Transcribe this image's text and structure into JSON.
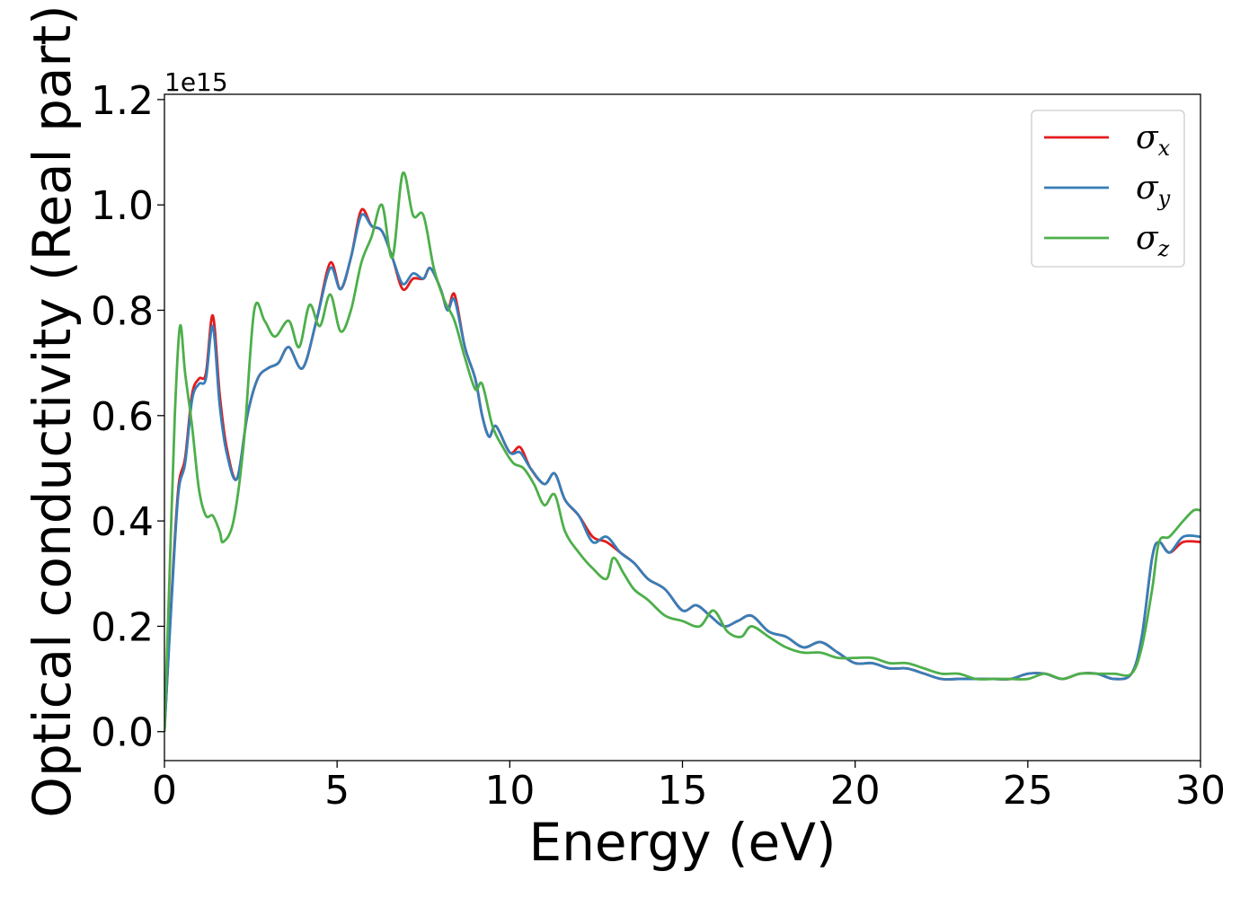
{
  "chart_data": {
    "type": "line",
    "title": "",
    "xlabel": "Energy (eV)",
    "ylabel": "Optical conductivity (Real part)",
    "y_offset_label": "1e15",
    "xlim": [
      0,
      30
    ],
    "ylim": [
      -0.055,
      1.21
    ],
    "grid": false,
    "legend_position": "top-right",
    "x_ticks": [
      0,
      5,
      10,
      15,
      20,
      25,
      30
    ],
    "x_tick_labels": [
      "0",
      "5",
      "10",
      "15",
      "20",
      "25",
      "30"
    ],
    "y_ticks": [
      0.0,
      0.2,
      0.4,
      0.6,
      0.8,
      1.0,
      1.2
    ],
    "y_tick_labels": [
      "0.0",
      "0.2",
      "0.4",
      "0.6",
      "0.8",
      "1.0",
      "1.2"
    ],
    "series": [
      {
        "name": "σ",
        "subscript": "x",
        "color": "#e41a1c",
        "points": [
          [
            0,
            0
          ],
          [
            0.2,
            0.25
          ],
          [
            0.4,
            0.46
          ],
          [
            0.6,
            0.52
          ],
          [
            0.8,
            0.64
          ],
          [
            1.0,
            0.67
          ],
          [
            1.2,
            0.68
          ],
          [
            1.4,
            0.79
          ],
          [
            1.6,
            0.64
          ],
          [
            1.8,
            0.54
          ],
          [
            2.1,
            0.48
          ],
          [
            2.4,
            0.6
          ],
          [
            2.7,
            0.67
          ],
          [
            3.0,
            0.69
          ],
          [
            3.3,
            0.7
          ],
          [
            3.6,
            0.73
          ],
          [
            4.0,
            0.69
          ],
          [
            4.4,
            0.78
          ],
          [
            4.8,
            0.89
          ],
          [
            5.1,
            0.84
          ],
          [
            5.4,
            0.9
          ],
          [
            5.7,
            0.99
          ],
          [
            6.0,
            0.96
          ],
          [
            6.3,
            0.95
          ],
          [
            6.6,
            0.9
          ],
          [
            6.9,
            0.84
          ],
          [
            7.2,
            0.86
          ],
          [
            7.5,
            0.86
          ],
          [
            7.7,
            0.88
          ],
          [
            8.0,
            0.84
          ],
          [
            8.2,
            0.8
          ],
          [
            8.4,
            0.83
          ],
          [
            8.7,
            0.73
          ],
          [
            9.0,
            0.67
          ],
          [
            9.2,
            0.6
          ],
          [
            9.4,
            0.56
          ],
          [
            9.6,
            0.58
          ],
          [
            10.0,
            0.53
          ],
          [
            10.3,
            0.54
          ],
          [
            10.6,
            0.5
          ],
          [
            11.0,
            0.47
          ],
          [
            11.3,
            0.49
          ],
          [
            11.6,
            0.44
          ],
          [
            12.0,
            0.41
          ],
          [
            12.4,
            0.37
          ],
          [
            12.8,
            0.36
          ],
          [
            13.2,
            0.34
          ],
          [
            13.6,
            0.32
          ],
          [
            14.0,
            0.29
          ],
          [
            14.5,
            0.27
          ],
          [
            15.0,
            0.23
          ],
          [
            15.4,
            0.24
          ],
          [
            15.8,
            0.22
          ],
          [
            16.2,
            0.2
          ],
          [
            16.6,
            0.21
          ],
          [
            17.0,
            0.22
          ],
          [
            17.5,
            0.19
          ],
          [
            18.0,
            0.18
          ],
          [
            18.5,
            0.16
          ],
          [
            19.0,
            0.17
          ],
          [
            19.5,
            0.15
          ],
          [
            20.0,
            0.13
          ],
          [
            20.5,
            0.13
          ],
          [
            21.0,
            0.12
          ],
          [
            21.5,
            0.12
          ],
          [
            22.0,
            0.11
          ],
          [
            22.5,
            0.1
          ],
          [
            23.0,
            0.1
          ],
          [
            23.5,
            0.1
          ],
          [
            24.0,
            0.1
          ],
          [
            24.5,
            0.1
          ],
          [
            25.0,
            0.11
          ],
          [
            25.5,
            0.11
          ],
          [
            26.0,
            0.1
          ],
          [
            26.5,
            0.11
          ],
          [
            27.0,
            0.11
          ],
          [
            27.5,
            0.1
          ],
          [
            28.0,
            0.11
          ],
          [
            28.3,
            0.18
          ],
          [
            28.6,
            0.33
          ],
          [
            28.8,
            0.36
          ],
          [
            29.1,
            0.34
          ],
          [
            29.5,
            0.36
          ],
          [
            30.0,
            0.36
          ]
        ]
      },
      {
        "name": "σ",
        "subscript": "y",
        "color": "#377eb8",
        "points": [
          [
            0,
            0
          ],
          [
            0.2,
            0.24
          ],
          [
            0.4,
            0.45
          ],
          [
            0.6,
            0.51
          ],
          [
            0.8,
            0.63
          ],
          [
            1.0,
            0.66
          ],
          [
            1.2,
            0.67
          ],
          [
            1.4,
            0.77
          ],
          [
            1.6,
            0.62
          ],
          [
            1.8,
            0.53
          ],
          [
            2.1,
            0.48
          ],
          [
            2.4,
            0.6
          ],
          [
            2.7,
            0.67
          ],
          [
            3.0,
            0.69
          ],
          [
            3.3,
            0.7
          ],
          [
            3.6,
            0.73
          ],
          [
            4.0,
            0.69
          ],
          [
            4.4,
            0.78
          ],
          [
            4.8,
            0.88
          ],
          [
            5.1,
            0.84
          ],
          [
            5.4,
            0.9
          ],
          [
            5.7,
            0.98
          ],
          [
            6.0,
            0.96
          ],
          [
            6.3,
            0.95
          ],
          [
            6.6,
            0.9
          ],
          [
            6.9,
            0.85
          ],
          [
            7.2,
            0.87
          ],
          [
            7.5,
            0.86
          ],
          [
            7.7,
            0.88
          ],
          [
            8.0,
            0.84
          ],
          [
            8.2,
            0.8
          ],
          [
            8.4,
            0.82
          ],
          [
            8.7,
            0.73
          ],
          [
            9.0,
            0.67
          ],
          [
            9.2,
            0.6
          ],
          [
            9.4,
            0.56
          ],
          [
            9.6,
            0.58
          ],
          [
            10.0,
            0.53
          ],
          [
            10.3,
            0.53
          ],
          [
            10.6,
            0.5
          ],
          [
            11.0,
            0.47
          ],
          [
            11.3,
            0.49
          ],
          [
            11.6,
            0.44
          ],
          [
            12.0,
            0.41
          ],
          [
            12.4,
            0.36
          ],
          [
            12.8,
            0.37
          ],
          [
            13.2,
            0.34
          ],
          [
            13.6,
            0.32
          ],
          [
            14.0,
            0.29
          ],
          [
            14.5,
            0.27
          ],
          [
            15.0,
            0.23
          ],
          [
            15.4,
            0.24
          ],
          [
            15.8,
            0.22
          ],
          [
            16.2,
            0.2
          ],
          [
            16.6,
            0.21
          ],
          [
            17.0,
            0.22
          ],
          [
            17.5,
            0.19
          ],
          [
            18.0,
            0.18
          ],
          [
            18.5,
            0.16
          ],
          [
            19.0,
            0.17
          ],
          [
            19.5,
            0.15
          ],
          [
            20.0,
            0.13
          ],
          [
            20.5,
            0.13
          ],
          [
            21.0,
            0.12
          ],
          [
            21.5,
            0.12
          ],
          [
            22.0,
            0.11
          ],
          [
            22.5,
            0.1
          ],
          [
            23.0,
            0.1
          ],
          [
            23.5,
            0.1
          ],
          [
            24.0,
            0.1
          ],
          [
            24.5,
            0.1
          ],
          [
            25.0,
            0.11
          ],
          [
            25.5,
            0.11
          ],
          [
            26.0,
            0.1
          ],
          [
            26.5,
            0.11
          ],
          [
            27.0,
            0.11
          ],
          [
            27.5,
            0.1
          ],
          [
            28.0,
            0.11
          ],
          [
            28.3,
            0.18
          ],
          [
            28.6,
            0.33
          ],
          [
            28.8,
            0.36
          ],
          [
            29.1,
            0.34
          ],
          [
            29.5,
            0.37
          ],
          [
            30.0,
            0.37
          ]
        ]
      },
      {
        "name": "σ",
        "subscript": "z",
        "color": "#4daf4a",
        "points": [
          [
            0,
            0
          ],
          [
            0.15,
            0.3
          ],
          [
            0.3,
            0.6
          ],
          [
            0.45,
            0.77
          ],
          [
            0.6,
            0.68
          ],
          [
            0.8,
            0.58
          ],
          [
            1.0,
            0.46
          ],
          [
            1.2,
            0.41
          ],
          [
            1.4,
            0.41
          ],
          [
            1.6,
            0.38
          ],
          [
            1.7,
            0.36
          ],
          [
            2.0,
            0.4
          ],
          [
            2.3,
            0.55
          ],
          [
            2.6,
            0.8
          ],
          [
            2.9,
            0.78
          ],
          [
            3.2,
            0.75
          ],
          [
            3.6,
            0.78
          ],
          [
            3.9,
            0.73
          ],
          [
            4.2,
            0.81
          ],
          [
            4.5,
            0.77
          ],
          [
            4.8,
            0.83
          ],
          [
            5.1,
            0.76
          ],
          [
            5.4,
            0.8
          ],
          [
            5.7,
            0.89
          ],
          [
            6.0,
            0.94
          ],
          [
            6.3,
            1.0
          ],
          [
            6.6,
            0.9
          ],
          [
            6.9,
            1.06
          ],
          [
            7.2,
            0.98
          ],
          [
            7.5,
            0.98
          ],
          [
            7.8,
            0.88
          ],
          [
            8.1,
            0.82
          ],
          [
            8.4,
            0.78
          ],
          [
            8.7,
            0.71
          ],
          [
            9.0,
            0.65
          ],
          [
            9.2,
            0.66
          ],
          [
            9.5,
            0.58
          ],
          [
            9.8,
            0.54
          ],
          [
            10.1,
            0.51
          ],
          [
            10.4,
            0.5
          ],
          [
            10.7,
            0.47
          ],
          [
            11.0,
            0.43
          ],
          [
            11.3,
            0.45
          ],
          [
            11.6,
            0.38
          ],
          [
            12.0,
            0.34
          ],
          [
            12.4,
            0.31
          ],
          [
            12.8,
            0.29
          ],
          [
            13.0,
            0.33
          ],
          [
            13.3,
            0.3
          ],
          [
            13.6,
            0.27
          ],
          [
            14.0,
            0.25
          ],
          [
            14.5,
            0.22
          ],
          [
            15.0,
            0.21
          ],
          [
            15.5,
            0.2
          ],
          [
            15.9,
            0.23
          ],
          [
            16.3,
            0.19
          ],
          [
            16.7,
            0.18
          ],
          [
            17.0,
            0.2
          ],
          [
            17.5,
            0.18
          ],
          [
            18.0,
            0.16
          ],
          [
            18.5,
            0.15
          ],
          [
            19.0,
            0.15
          ],
          [
            19.5,
            0.14
          ],
          [
            20.0,
            0.14
          ],
          [
            20.5,
            0.14
          ],
          [
            21.0,
            0.13
          ],
          [
            21.5,
            0.13
          ],
          [
            22.0,
            0.12
          ],
          [
            22.5,
            0.11
          ],
          [
            23.0,
            0.11
          ],
          [
            23.5,
            0.1
          ],
          [
            24.0,
            0.1
          ],
          [
            24.5,
            0.1
          ],
          [
            25.0,
            0.1
          ],
          [
            25.5,
            0.11
          ],
          [
            26.0,
            0.1
          ],
          [
            26.5,
            0.11
          ],
          [
            27.0,
            0.11
          ],
          [
            27.5,
            0.11
          ],
          [
            28.0,
            0.11
          ],
          [
            28.3,
            0.16
          ],
          [
            28.6,
            0.27
          ],
          [
            28.8,
            0.36
          ],
          [
            29.1,
            0.37
          ],
          [
            29.5,
            0.4
          ],
          [
            29.8,
            0.42
          ],
          [
            30.0,
            0.42
          ]
        ]
      }
    ]
  }
}
